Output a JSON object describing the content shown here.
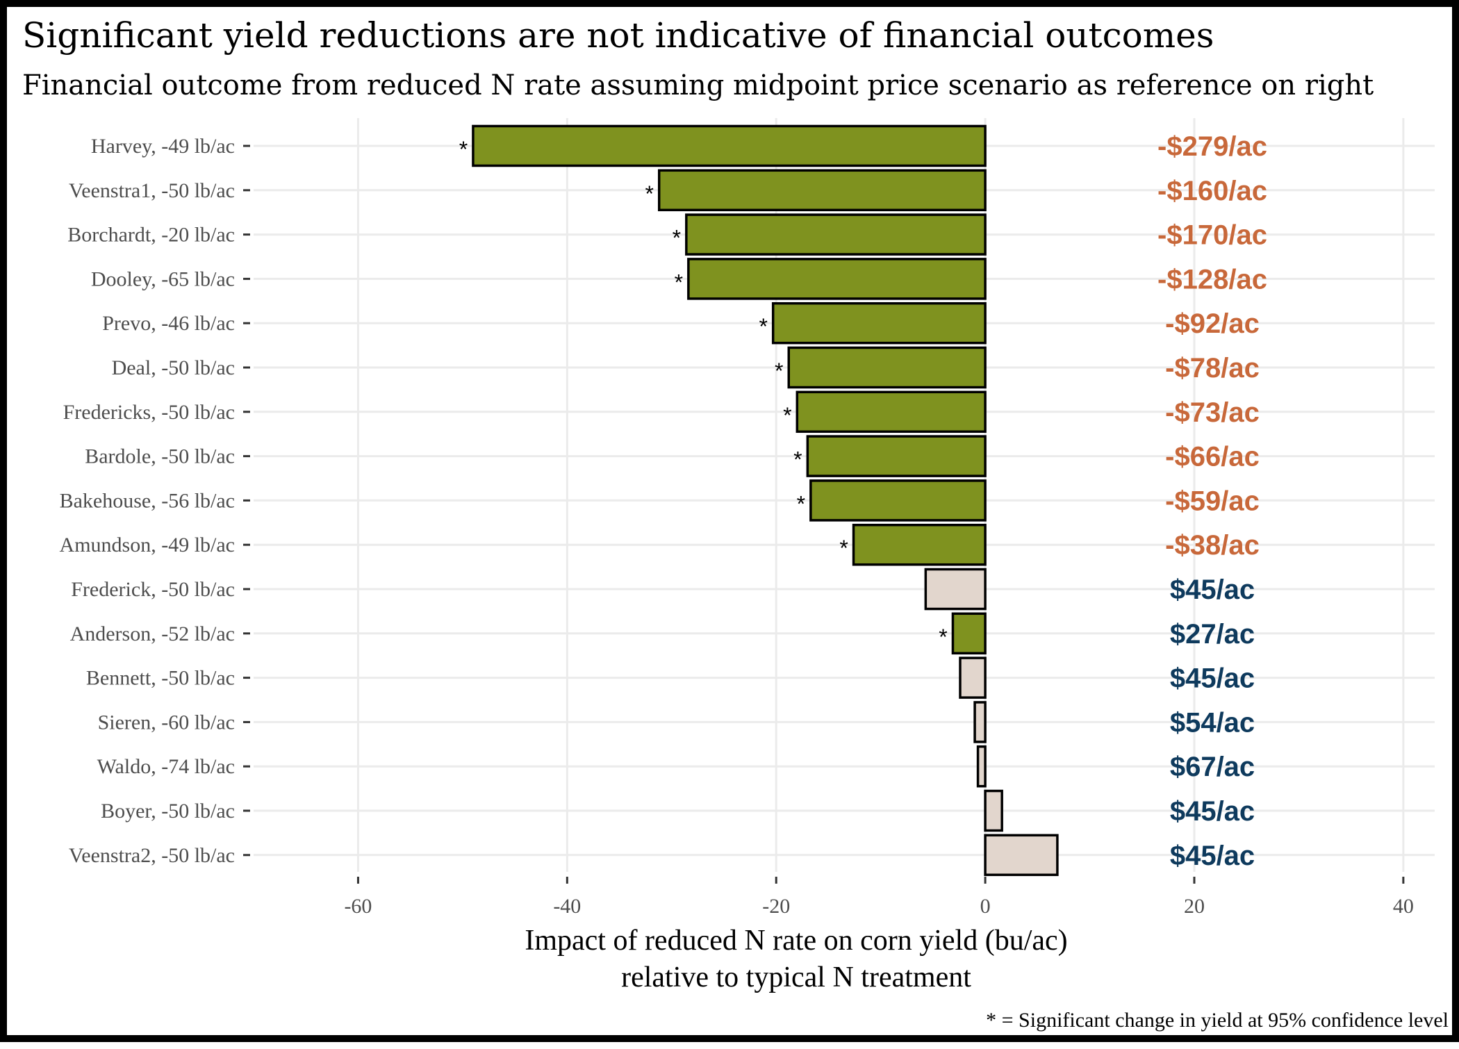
{
  "chart_data": {
    "type": "bar",
    "orientation": "horizontal",
    "title": "Significant yield reductions are not indicative of financial outcomes",
    "subtitle": "Financial outcome from reduced N rate assuming midpoint price scenario as reference on right",
    "xlabel_line1": "Impact of reduced N rate on corn yield (bu/ac)",
    "xlabel_line2": "relative to typical N treatment",
    "caption": "* = Significant change in yield at 95% confidence level",
    "xlim": [
      -70,
      43
    ],
    "xticks": [
      -60,
      -40,
      -20,
      0,
      20,
      40
    ],
    "xtick_labels": [
      "-60",
      "-40",
      "-20",
      "0",
      "20",
      "40"
    ],
    "grid": true,
    "colors": {
      "significant": "#7f921f",
      "not_significant": "#e2d6cd",
      "bar_outline": "#000000",
      "loss_label": "#c8683a",
      "gain_label": "#0e3a5d",
      "grid": "#ebebeb"
    },
    "categories": [
      "Harvey, -49 lb/ac",
      "Veenstra1, -50 lb/ac",
      "Borchardt, -20 lb/ac",
      "Dooley, -65 lb/ac",
      "Prevo, -46 lb/ac",
      "Deal, -50 lb/ac",
      "Fredericks, -50 lb/ac",
      "Bardole, -50 lb/ac",
      "Bakehouse, -56 lb/ac",
      "Amundson, -49 lb/ac",
      "Frederick, -50 lb/ac",
      "Anderson, -52 lb/ac",
      "Bennett, -50 lb/ac",
      "Sieren, -60 lb/ac",
      "Waldo, -74 lb/ac",
      "Boyer, -50 lb/ac",
      "Veenstra2, -50 lb/ac"
    ],
    "values": [
      -49.0,
      -31.2,
      -28.6,
      -28.4,
      -20.3,
      -18.8,
      -18.0,
      -17.0,
      -16.7,
      -12.6,
      -5.7,
      -3.1,
      -2.4,
      -1.0,
      -0.7,
      1.6,
      6.9
    ],
    "significant": [
      true,
      true,
      true,
      true,
      true,
      true,
      true,
      true,
      true,
      true,
      false,
      true,
      false,
      false,
      false,
      false,
      false
    ],
    "financial_labels": [
      "-$279/ac",
      "-$160/ac",
      "-$170/ac",
      "-$128/ac",
      "-$92/ac",
      "-$78/ac",
      "-$73/ac",
      "-$66/ac",
      "-$59/ac",
      "-$38/ac",
      "$45/ac",
      "$27/ac",
      "$45/ac",
      "$54/ac",
      "$67/ac",
      "$45/ac",
      "$45/ac"
    ],
    "star_symbol": "*"
  }
}
